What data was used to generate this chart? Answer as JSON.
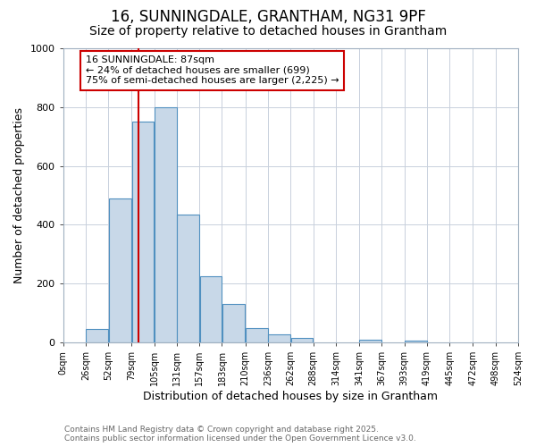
{
  "title1": "16, SUNNINGDALE, GRANTHAM, NG31 9PF",
  "title2": "Size of property relative to detached houses in Grantham",
  "xlabel": "Distribution of detached houses by size in Grantham",
  "ylabel": "Number of detached properties",
  "bin_edges": [
    0,
    26,
    52,
    79,
    105,
    131,
    157,
    183,
    210,
    236,
    262,
    288,
    314,
    341,
    367,
    393,
    419,
    445,
    472,
    498,
    524
  ],
  "bar_heights": [
    0,
    45,
    490,
    750,
    800,
    435,
    225,
    130,
    50,
    28,
    15,
    0,
    0,
    8,
    0,
    5,
    0,
    0,
    0,
    0
  ],
  "bar_color": "#c8d8e8",
  "bar_edge_color": "#5090c0",
  "vline_x": 87,
  "vline_color": "#cc0000",
  "annotation_text": "16 SUNNINGDALE: 87sqm\n← 24% of detached houses are smaller (699)\n75% of semi-detached houses are larger (2,225) →",
  "annotation_box_color": "#ffffff",
  "annotation_box_edge": "#cc0000",
  "ylim": [
    0,
    1000
  ],
  "xlim": [
    0,
    524
  ],
  "tick_labels": [
    "0sqm",
    "26sqm",
    "52sqm",
    "79sqm",
    "105sqm",
    "131sqm",
    "157sqm",
    "183sqm",
    "210sqm",
    "236sqm",
    "262sqm",
    "288sqm",
    "314sqm",
    "341sqm",
    "367sqm",
    "393sqm",
    "419sqm",
    "445sqm",
    "472sqm",
    "498sqm",
    "524sqm"
  ],
  "tick_positions": [
    0,
    26,
    52,
    79,
    105,
    131,
    157,
    183,
    210,
    236,
    262,
    288,
    314,
    341,
    367,
    393,
    419,
    445,
    472,
    498,
    524
  ],
  "footer_text": "Contains HM Land Registry data © Crown copyright and database right 2025.\nContains public sector information licensed under the Open Government Licence v3.0.",
  "bg_color": "#ffffff",
  "plot_bg_color": "#ffffff",
  "grid_color": "#c8d0dc",
  "title_fontsize": 12,
  "subtitle_fontsize": 10,
  "axis_fontsize": 9,
  "tick_fontsize": 7,
  "footer_fontsize": 6.5,
  "annot_fontsize": 8
}
